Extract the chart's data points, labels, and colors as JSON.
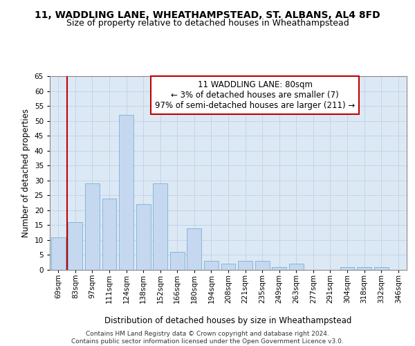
{
  "title_line1": "11, WADDLING LANE, WHEATHAMPSTEAD, ST. ALBANS, AL4 8FD",
  "title_line2": "Size of property relative to detached houses in Wheathampstead",
  "xlabel": "Distribution of detached houses by size in Wheathampstead",
  "ylabel": "Number of detached properties",
  "categories": [
    "69sqm",
    "83sqm",
    "97sqm",
    "111sqm",
    "124sqm",
    "138sqm",
    "152sqm",
    "166sqm",
    "180sqm",
    "194sqm",
    "208sqm",
    "221sqm",
    "235sqm",
    "249sqm",
    "263sqm",
    "277sqm",
    "291sqm",
    "304sqm",
    "318sqm",
    "332sqm",
    "346sqm"
  ],
  "values": [
    11,
    16,
    29,
    24,
    52,
    22,
    29,
    6,
    14,
    3,
    2,
    3,
    3,
    1,
    2,
    0,
    0,
    1,
    1,
    1,
    0
  ],
  "bar_color": "#c5d8f0",
  "bar_edge_color": "#7aafd4",
  "highlight_color": "#c00000",
  "annotation_text": "11 WADDLING LANE: 80sqm\n← 3% of detached houses are smaller (7)\n97% of semi-detached houses are larger (211) →",
  "annotation_box_color": "#ffffff",
  "annotation_box_edge": "#c00000",
  "ylim": [
    0,
    65
  ],
  "yticks": [
    0,
    5,
    10,
    15,
    20,
    25,
    30,
    35,
    40,
    45,
    50,
    55,
    60,
    65
  ],
  "grid_color": "#c0d4e8",
  "bg_color": "#dce9f5",
  "footer": "Contains HM Land Registry data © Crown copyright and database right 2024.\nContains public sector information licensed under the Open Government Licence v3.0.",
  "title_fontsize": 10,
  "subtitle_fontsize": 9,
  "axis_label_fontsize": 8.5,
  "tick_fontsize": 7.5,
  "annotation_fontsize": 8.5,
  "footer_fontsize": 6.5
}
